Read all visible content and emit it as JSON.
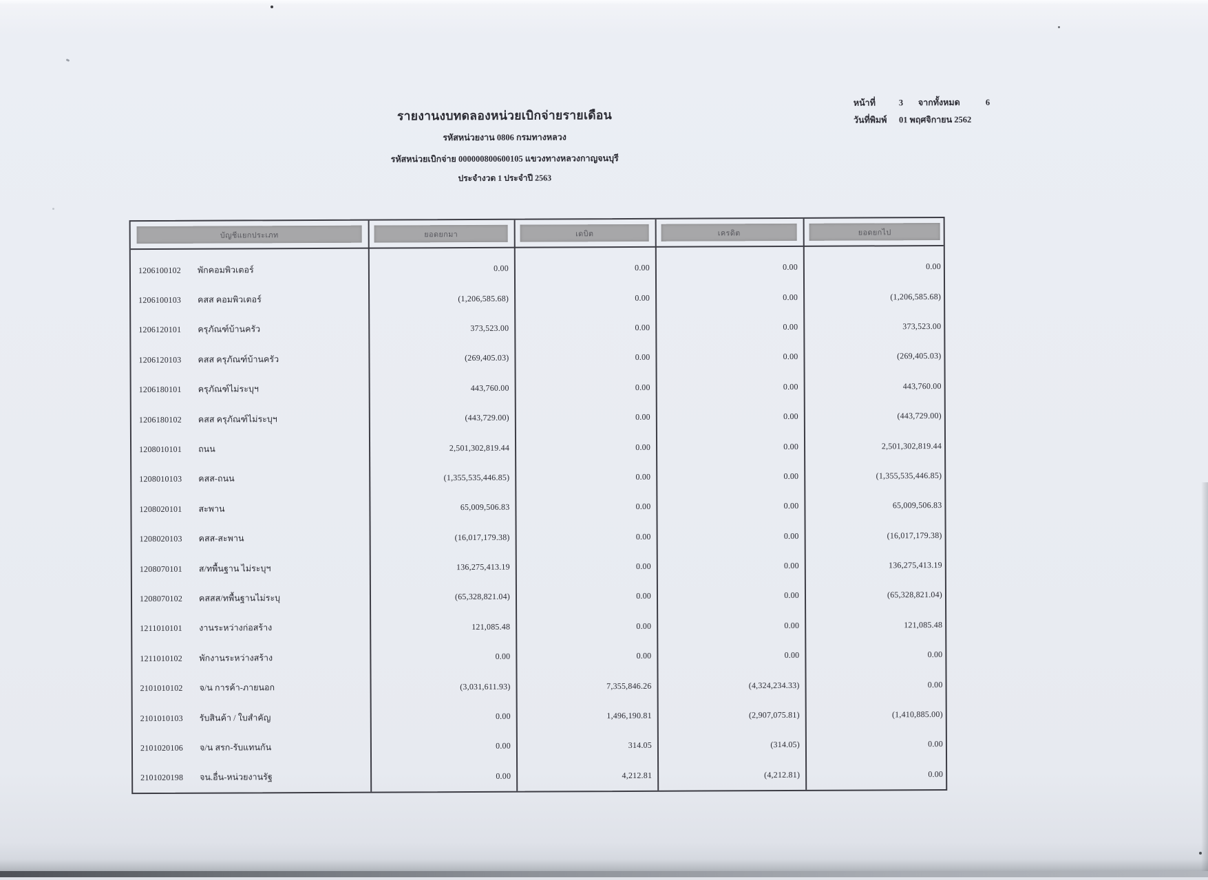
{
  "header": {
    "title": "รายงานงบทดลองหน่วยเบิกจ่ายรายเดือน",
    "agency_line": "รหัสหน่วยงาน 0806 กรมทางหลวง",
    "unit_line": "รหัสหน่วยเบิกจ่าย 000000800600105 แขวงทางหลวงกาญจนบุรี",
    "period_line": "ประจำงวด 1 ประจำปี 2563"
  },
  "page_info": {
    "page_label": "หน้าที่",
    "page_number": "3",
    "total_label": "จากทั้งหมด",
    "total_pages": "6",
    "print_date_label": "วันที่พิมพ์",
    "print_date": "01 พฤศจิกายน 2562"
  },
  "table": {
    "headers": [
      "บัญชีแยกประเภท",
      "ยอดยกมา",
      "เดบิต",
      "เครดิต",
      "ยอดยกไป"
    ],
    "rows": [
      {
        "code": "1206100102",
        "name": "พักคอมพิวเตอร์",
        "carry": "0.00",
        "debit": "0.00",
        "credit": "0.00",
        "balance": "0.00"
      },
      {
        "code": "1206100103",
        "name": "คสส คอมพิวเตอร์",
        "carry": "(1,206,585.68)",
        "debit": "0.00",
        "credit": "0.00",
        "balance": "(1,206,585.68)"
      },
      {
        "code": "1206120101",
        "name": "ครุภัณฑ์บ้านครัว",
        "carry": "373,523.00",
        "debit": "0.00",
        "credit": "0.00",
        "balance": "373,523.00"
      },
      {
        "code": "1206120103",
        "name": "คสส ครุภัณฑ์บ้านครัว",
        "carry": "(269,405.03)",
        "debit": "0.00",
        "credit": "0.00",
        "balance": "(269,405.03)"
      },
      {
        "code": "1206180101",
        "name": "ครุภัณฑ์ไม่ระบุฯ",
        "carry": "443,760.00",
        "debit": "0.00",
        "credit": "0.00",
        "balance": "443,760.00"
      },
      {
        "code": "1206180102",
        "name": "คสส ครุภัณฑ์ไม่ระบุฯ",
        "carry": "(443,729.00)",
        "debit": "0.00",
        "credit": "0.00",
        "balance": "(443,729.00)"
      },
      {
        "code": "1208010101",
        "name": "ถนน",
        "carry": "2,501,302,819.44",
        "debit": "0.00",
        "credit": "0.00",
        "balance": "2,501,302,819.44"
      },
      {
        "code": "1208010103",
        "name": "คสส-ถนน",
        "carry": "(1,355,535,446.85)",
        "debit": "0.00",
        "credit": "0.00",
        "balance": "(1,355,535,446.85)"
      },
      {
        "code": "1208020101",
        "name": "สะพาน",
        "carry": "65,009,506.83",
        "debit": "0.00",
        "credit": "0.00",
        "balance": "65,009,506.83"
      },
      {
        "code": "1208020103",
        "name": "คสส-สะพาน",
        "carry": "(16,017,179.38)",
        "debit": "0.00",
        "credit": "0.00",
        "balance": "(16,017,179.38)"
      },
      {
        "code": "1208070101",
        "name": "ส/ทพื้นฐาน ไม่ระบุฯ",
        "carry": "136,275,413.19",
        "debit": "0.00",
        "credit": "0.00",
        "balance": "136,275,413.19"
      },
      {
        "code": "1208070102",
        "name": "คสสส/ทพื้นฐานไม่ระบุ",
        "carry": "(65,328,821.04)",
        "debit": "0.00",
        "credit": "0.00",
        "balance": "(65,328,821.04)"
      },
      {
        "code": "1211010101",
        "name": "งานระหว่างก่อสร้าง",
        "carry": "121,085.48",
        "debit": "0.00",
        "credit": "0.00",
        "balance": "121,085.48"
      },
      {
        "code": "1211010102",
        "name": "พักงานระหว่างสร้าง",
        "carry": "0.00",
        "debit": "0.00",
        "credit": "0.00",
        "balance": "0.00"
      },
      {
        "code": "2101010102",
        "name": "จ/น การค้า-ภายนอก",
        "carry": "(3,031,611.93)",
        "debit": "7,355,846.26",
        "credit": "(4,324,234.33)",
        "balance": "0.00"
      },
      {
        "code": "2101010103",
        "name": "รับสินค้า / ใบสำคัญ",
        "carry": "0.00",
        "debit": "1,496,190.81",
        "credit": "(2,907,075.81)",
        "balance": "(1,410,885.00)"
      },
      {
        "code": "2101020106",
        "name": "จ/น สรก-รับแทนกัน",
        "carry": "0.00",
        "debit": "314.05",
        "credit": "(314.05)",
        "balance": "0.00"
      },
      {
        "code": "2101020198",
        "name": "จน.อื่น-หน่วยงานรัฐ",
        "carry": "0.00",
        "debit": "4,212.81",
        "credit": "(4,212.81)",
        "balance": "0.00"
      }
    ]
  },
  "colors": {
    "paper": "#e9ecf2",
    "ink": "#2b2b33",
    "table_border": "#3c3c44",
    "header_bar": "#a7a7a9"
  }
}
